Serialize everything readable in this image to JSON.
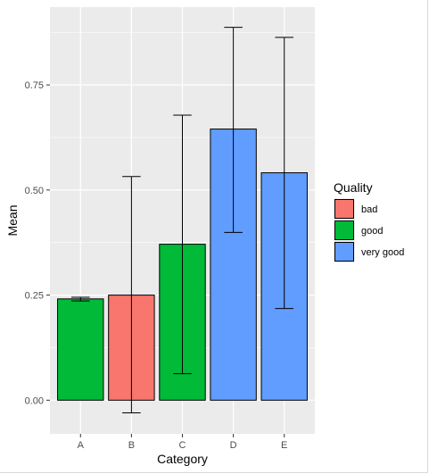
{
  "chart_data": {
    "type": "bar",
    "xlabel": "Category",
    "ylabel": "Mean",
    "categories": [
      "A",
      "B",
      "C",
      "D",
      "E"
    ],
    "values": [
      0.241,
      0.25,
      0.371,
      0.645,
      0.541
    ],
    "error_low": [
      0.236,
      -0.03,
      0.063,
      0.399,
      0.218
    ],
    "error_high": [
      0.245,
      0.532,
      0.678,
      0.887,
      0.863
    ],
    "groups": [
      "good",
      "bad",
      "good",
      "very good",
      "very good"
    ],
    "ylim": [
      -0.08,
      0.935
    ],
    "yticks": [
      0.0,
      0.25,
      0.5,
      0.75
    ],
    "ytick_labels": [
      "0.00",
      "0.25",
      "0.50",
      "0.75"
    ],
    "legend": {
      "title": "Quality",
      "placement": "right",
      "entries": [
        {
          "label": "bad",
          "color": "#F8766D"
        },
        {
          "label": "good",
          "color": "#00BA38"
        },
        {
          "label": "very good",
          "color": "#619CFF"
        }
      ]
    },
    "grid": true,
    "colors": {
      "panel": "#EBEBEB",
      "grid": "#FFFFFF",
      "bar_outline": "#000000",
      "errorbar": "#000000"
    }
  }
}
